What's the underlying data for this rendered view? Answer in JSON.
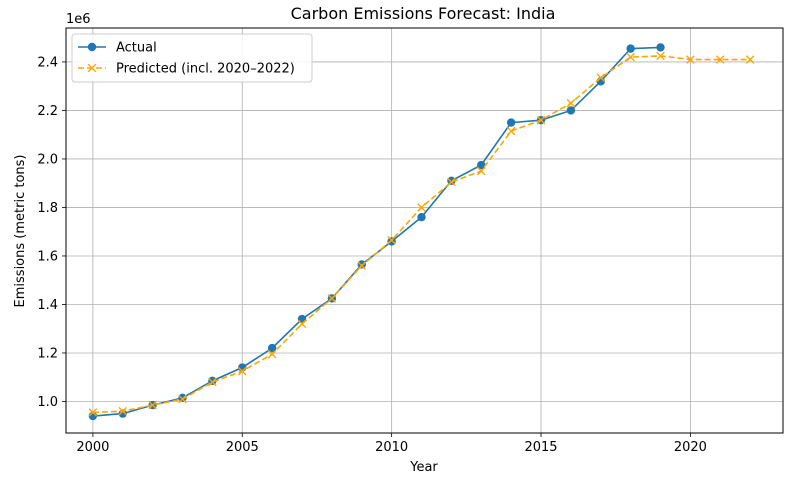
{
  "chart_data": {
    "type": "line",
    "title": "Carbon Emissions Forecast: India",
    "xlabel": "Year",
    "ylabel": "Emissions (metric tons)",
    "y_offset_label": "1e6",
    "y_scale_factor": 1000000,
    "xlim": [
      1999.1,
      2023.1
    ],
    "ylim": [
      870000,
      2540000
    ],
    "xticks": [
      2000,
      2005,
      2010,
      2015,
      2020
    ],
    "yticks": [
      1.0,
      1.2,
      1.4,
      1.6,
      1.8,
      2.0,
      2.2,
      2.4
    ],
    "ytick_labels": [
      "1.0",
      "1.2",
      "1.4",
      "1.6",
      "1.8",
      "2.0",
      "2.2",
      "2.4"
    ],
    "grid": true,
    "legend_position": "top-left",
    "series": [
      {
        "name": "Actual",
        "color": "#1f77b4",
        "style": "solid",
        "marker": "circle",
        "x": [
          2000,
          2001,
          2002,
          2003,
          2004,
          2005,
          2006,
          2007,
          2008,
          2009,
          2010,
          2011,
          2012,
          2013,
          2014,
          2015,
          2016,
          2017,
          2018,
          2019
        ],
        "values": [
          940000,
          950000,
          985000,
          1015000,
          1085000,
          1140000,
          1220000,
          1340000,
          1425000,
          1565000,
          1660000,
          1760000,
          1910000,
          1975000,
          2150000,
          2160000,
          2200000,
          2320000,
          2455000,
          2460000
        ]
      },
      {
        "name": "Predicted (incl. 2020–2022)",
        "color": "#ffa500",
        "style": "dashed",
        "marker": "x",
        "x": [
          2000,
          2001,
          2002,
          2003,
          2004,
          2005,
          2006,
          2007,
          2008,
          2009,
          2010,
          2011,
          2012,
          2013,
          2014,
          2015,
          2016,
          2017,
          2018,
          2019,
          2020,
          2021,
          2022
        ],
        "values": [
          955000,
          960000,
          985000,
          1010000,
          1080000,
          1125000,
          1195000,
          1320000,
          1425000,
          1560000,
          1665000,
          1800000,
          1905000,
          1950000,
          2115000,
          2160000,
          2230000,
          2335000,
          2420000,
          2425000,
          2410000,
          2410000,
          2410000
        ]
      }
    ]
  }
}
